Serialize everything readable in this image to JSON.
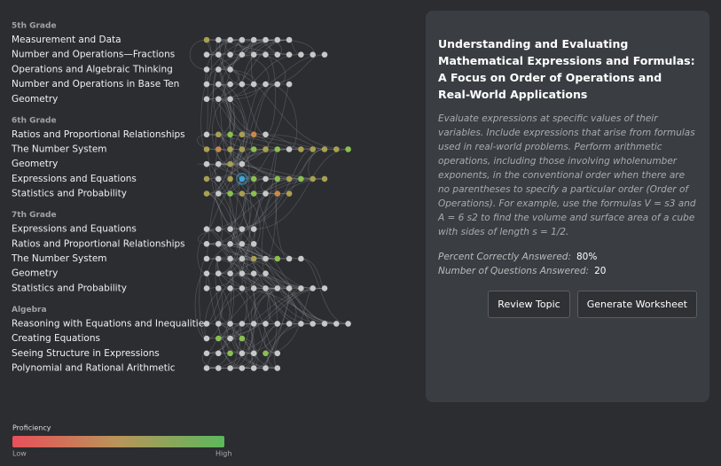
{
  "grades": [
    {
      "name": "5th Grade",
      "topics": [
        {
          "name": "Measurement and Data",
          "dots": [
            "#a8a050",
            "#c8c8c8",
            "#c8c8c8",
            "#c8c8c8",
            "#c8c8c8",
            "#c8c8c8",
            "#c8c8c8",
            "#c8c8c8"
          ]
        },
        {
          "name": "Number and Operations—Fractions",
          "dots": [
            "#c8c8c8",
            "#c8c8c8",
            "#c8c8c8",
            "#c8c8c8",
            "#c8c8c8",
            "#c8c8c8",
            "#c8c8c8",
            "#c8c8c8",
            "#c8c8c8",
            "#c8c8c8",
            "#c8c8c8"
          ]
        },
        {
          "name": "Operations and Algebraic Thinking",
          "dots": [
            "#c8c8c8",
            "#c8c8c8",
            "#c8c8c8"
          ]
        },
        {
          "name": "Number and Operations in Base Ten",
          "dots": [
            "#c8c8c8",
            "#c8c8c8",
            "#c8c8c8",
            "#c8c8c8",
            "#c8c8c8",
            "#c8c8c8",
            "#c8c8c8",
            "#c8c8c8"
          ]
        },
        {
          "name": "Geometry",
          "dots": [
            "#c8c8c8",
            "#c8c8c8",
            "#c8c8c8"
          ]
        }
      ]
    },
    {
      "name": "6th Grade",
      "topics": [
        {
          "name": "Ratios and Proportional Relationships",
          "dots": [
            "#c8c8c8",
            "#a8a050",
            "#8bbf4e",
            "#a8a050",
            "#c9884a",
            "#c8c8c8"
          ]
        },
        {
          "name": "The Number System",
          "dots": [
            "#a8a050",
            "#c9884a",
            "#a8a050",
            "#a8a050",
            "#8bbf4e",
            "#a8a050",
            "#8bbf4e",
            "#c8c8c8",
            "#a8a050",
            "#a8a050",
            "#a8a050",
            "#a8a050",
            "#8bbf4e"
          ]
        },
        {
          "name": "Geometry",
          "dots": [
            "#c8c8c8",
            "#c8c8c8",
            "#a8a050",
            "#c8c8c8"
          ]
        },
        {
          "name": "Expressions and Equations",
          "dots": [
            "#a8a050",
            "#c8c8c8",
            "#a8a050",
            "#3fa6d6",
            "#8bbf4e",
            "#c8c8c8",
            "#8bbf4e",
            "#a8a050",
            "#8bbf4e",
            "#a8a050",
            "#a8a050"
          ]
        },
        {
          "name": "Statistics and Probability",
          "dots": [
            "#a8a050",
            "#c8c8c8",
            "#8bbf4e",
            "#a8a050",
            "#8bbf4e",
            "#c8c8c8",
            "#c9884a",
            "#a8a050"
          ]
        }
      ]
    },
    {
      "name": "7th Grade",
      "topics": [
        {
          "name": "Expressions and Equations",
          "dots": [
            "#c8c8c8",
            "#c8c8c8",
            "#c8c8c8",
            "#c8c8c8",
            "#c8c8c8"
          ]
        },
        {
          "name": "Ratios and Proportional Relationships",
          "dots": [
            "#c8c8c8",
            "#c8c8c8",
            "#c8c8c8",
            "#c8c8c8",
            "#c8c8c8"
          ]
        },
        {
          "name": "The Number System",
          "dots": [
            "#c8c8c8",
            "#c8c8c8",
            "#c8c8c8",
            "#c8c8c8",
            "#a8a050",
            "#c8c8c8",
            "#8bbf4e",
            "#c8c8c8",
            "#c8c8c8"
          ]
        },
        {
          "name": "Geometry",
          "dots": [
            "#c8c8c8",
            "#c8c8c8",
            "#c8c8c8",
            "#c8c8c8",
            "#c8c8c8",
            "#c8c8c8"
          ]
        },
        {
          "name": "Statistics and Probability",
          "dots": [
            "#c8c8c8",
            "#c8c8c8",
            "#c8c8c8",
            "#c8c8c8",
            "#c8c8c8",
            "#c8c8c8",
            "#c8c8c8",
            "#c8c8c8",
            "#c8c8c8",
            "#c8c8c8",
            "#c8c8c8"
          ]
        }
      ]
    },
    {
      "name": "Algebra",
      "topics": [
        {
          "name": "Reasoning with Equations and Inequalities",
          "dots": [
            "#c8c8c8",
            "#c8c8c8",
            "#c8c8c8",
            "#c8c8c8",
            "#c8c8c8",
            "#c8c8c8",
            "#c8c8c8",
            "#c8c8c8",
            "#c8c8c8",
            "#c8c8c8",
            "#c8c8c8",
            "#c8c8c8",
            "#c8c8c8"
          ]
        },
        {
          "name": "Creating Equations",
          "dots": [
            "#c8c8c8",
            "#8bbf4e",
            "#c8c8c8",
            "#8bbf4e"
          ]
        },
        {
          "name": "Seeing Structure in Expressions",
          "dots": [
            "#c8c8c8",
            "#c8c8c8",
            "#8bbf4e",
            "#c8c8c8",
            "#c8c8c8",
            "#8bbf4e",
            "#c8c8c8"
          ]
        },
        {
          "name": "Polynomial and Rational Arithmetic",
          "dots": [
            "#c8c8c8",
            "#c8c8c8",
            "#c8c8c8",
            "#c8c8c8",
            "#c8c8c8",
            "#c8c8c8",
            "#c8c8c8"
          ]
        }
      ]
    }
  ],
  "panel": {
    "title": "Understanding and Evaluating Mathematical Expressions and Formulas: A Focus on Order of Operations and Real-World Applications",
    "description": "Evaluate expressions at specific values of their variables. Include expressions that arise from formulas used in real-world problems. Perform arithmetic operations, including those involving wholenumber exponents, in the conventional order when there are no parentheses to specify a particular order (Order of Operations). For example, use the formulas V = s3 and A = 6 s2 to find the volume and surface area of a cube with sides of length s = 1/2.",
    "stats": [
      {
        "label": "Percent Correctly Answered:",
        "value": "80%"
      },
      {
        "label": "Number of Questions Answered:",
        "value": "20"
      }
    ],
    "buttons": [
      "Review Topic",
      "Generate Worksheet"
    ]
  },
  "legend": {
    "title": "Proficiency",
    "low": "Low",
    "high": "High"
  }
}
